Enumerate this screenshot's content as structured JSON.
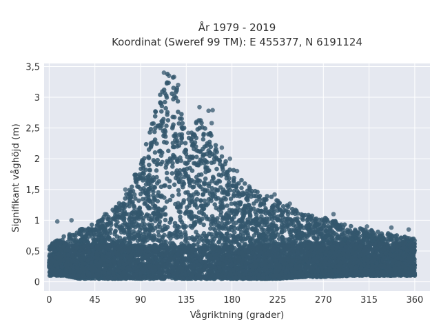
{
  "chart_data": {
    "type": "scatter",
    "title": "År 1979 - 2019",
    "subtitle": "Koordinat (Sweref 99 TM): E 455377, N 6191124",
    "xlabel": "Vågriktning (grader)",
    "ylabel": "Signifikant våghöjd (m)",
    "xlim": [
      -5,
      375
    ],
    "ylim": [
      -0.15,
      3.55
    ],
    "xticks": [
      0,
      45,
      90,
      135,
      180,
      225,
      270,
      315,
      360
    ],
    "xtick_labels": [
      "0",
      "45",
      "90",
      "135",
      "180",
      "225",
      "270",
      "315",
      "360"
    ],
    "yticks": [
      0,
      0.5,
      1,
      1.5,
      2,
      2.5,
      3,
      3.5
    ],
    "ytick_labels": [
      "0",
      "0,5",
      "1",
      "1,5",
      "2",
      "2,5",
      "3",
      "3,5"
    ],
    "grid": true,
    "legend": "none",
    "marker_color": "#34576d",
    "plot_bg": "#e5e8f0",
    "grid_color": "#ffffff",
    "x_range": [
      0,
      360
    ],
    "envelope": [
      {
        "x": 0,
        "ymin": 0.1,
        "ymax": 0.6
      },
      {
        "x": 15,
        "ymin": 0.1,
        "ymax": 0.75
      },
      {
        "x": 30,
        "ymin": 0.05,
        "ymax": 0.85
      },
      {
        "x": 45,
        "ymin": 0.05,
        "ymax": 0.95
      },
      {
        "x": 60,
        "ymin": 0.05,
        "ymax": 1.15
      },
      {
        "x": 75,
        "ymin": 0.05,
        "ymax": 1.4
      },
      {
        "x": 90,
        "ymin": 0.05,
        "ymax": 1.95
      },
      {
        "x": 100,
        "ymin": 0.05,
        "ymax": 2.5
      },
      {
        "x": 110,
        "ymin": 0.05,
        "ymax": 3.1
      },
      {
        "x": 115,
        "ymin": 0.05,
        "ymax": 3.4
      },
      {
        "x": 125,
        "ymin": 0.05,
        "ymax": 3.3
      },
      {
        "x": 135,
        "ymin": 0.05,
        "ymax": 2.3
      },
      {
        "x": 150,
        "ymin": 0.05,
        "ymax": 2.8
      },
      {
        "x": 165,
        "ymin": 0.05,
        "ymax": 2.2
      },
      {
        "x": 180,
        "ymin": 0.05,
        "ymax": 1.85
      },
      {
        "x": 200,
        "ymin": 0.05,
        "ymax": 1.5
      },
      {
        "x": 225,
        "ymin": 0.05,
        "ymax": 1.35
      },
      {
        "x": 250,
        "ymin": 0.08,
        "ymax": 1.1
      },
      {
        "x": 270,
        "ymin": 0.08,
        "ymax": 1.05
      },
      {
        "x": 300,
        "ymin": 0.1,
        "ymax": 0.9
      },
      {
        "x": 330,
        "ymin": 0.1,
        "ymax": 0.8
      },
      {
        "x": 360,
        "ymin": 0.1,
        "ymax": 0.7
      }
    ],
    "notable_points": [
      {
        "x": 113,
        "y": 3.4
      },
      {
        "x": 118,
        "y": 3.35
      },
      {
        "x": 123,
        "y": 3.33
      },
      {
        "x": 127,
        "y": 3.2
      },
      {
        "x": 148,
        "y": 2.84
      },
      {
        "x": 157,
        "y": 2.78
      },
      {
        "x": 161,
        "y": 2.79
      },
      {
        "x": 145,
        "y": 2.6
      },
      {
        "x": 160,
        "y": 2.58
      },
      {
        "x": 137,
        "y": 2.42
      },
      {
        "x": 170,
        "y": 2.18
      },
      {
        "x": 178,
        "y": 2.0
      },
      {
        "x": 185,
        "y": 1.8
      },
      {
        "x": 197,
        "y": 1.55
      },
      {
        "x": 222,
        "y": 1.42
      },
      {
        "x": 237,
        "y": 1.27
      },
      {
        "x": 227,
        "y": 1.28
      },
      {
        "x": 280,
        "y": 1.1
      },
      {
        "x": 313,
        "y": 0.9
      },
      {
        "x": 337,
        "y": 0.88
      },
      {
        "x": 354,
        "y": 0.85
      },
      {
        "x": 8,
        "y": 0.98
      },
      {
        "x": 22,
        "y": 1.0
      },
      {
        "x": 55,
        "y": 1.1
      },
      {
        "x": 75,
        "y": 1.5
      },
      {
        "x": 85,
        "y": 1.7
      },
      {
        "x": 92,
        "y": 1.95
      },
      {
        "x": 100,
        "y": 2.25
      }
    ]
  }
}
